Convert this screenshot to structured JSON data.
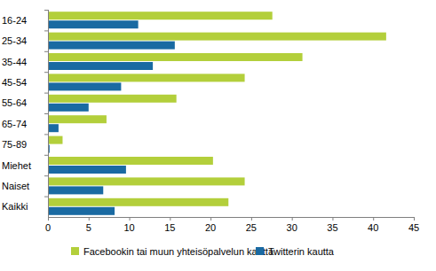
{
  "chart_data": {
    "type": "bar",
    "orientation": "horizontal",
    "categories": [
      "16-24",
      "25-34",
      "35-44",
      "45-54",
      "55-64",
      "65-74",
      "75-89",
      "Miehet",
      "Naiset",
      "Kaikki"
    ],
    "series": [
      {
        "name": "Facebookin tai muun yhteisöpalvelun kautta",
        "color": "#b3cf3b",
        "values": [
          27.6,
          41.6,
          31.3,
          24.2,
          15.8,
          7.2,
          1.8,
          20.3,
          24.2,
          22.2
        ]
      },
      {
        "name": "Twitterin kautta",
        "color": "#1a6aa2",
        "values": [
          11.1,
          15.6,
          12.9,
          9.0,
          5.0,
          1.3,
          0.2,
          9.6,
          6.8,
          8.2
        ]
      }
    ],
    "xlim": [
      0,
      45
    ],
    "xticks": [
      0,
      5,
      10,
      15,
      20,
      25,
      30,
      35,
      40,
      45
    ],
    "grid": false,
    "legend": "bottom"
  }
}
